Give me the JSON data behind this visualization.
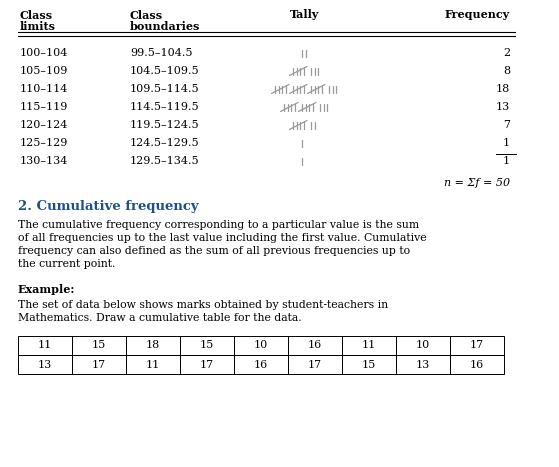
{
  "title_table": [
    "Class\nlimits",
    "Class\nboundaries",
    "Tally",
    "Frequency"
  ],
  "rows": [
    [
      "100–104",
      "99.5–104.5",
      2,
      "2"
    ],
    [
      "105–109",
      "104.5–109.5",
      8,
      "8"
    ],
    [
      "110–114",
      "109.5–114.5",
      18,
      "18"
    ],
    [
      "115–119",
      "114.5–119.5",
      13,
      "13"
    ],
    [
      "120–124",
      "119.5–124.5",
      7,
      "7"
    ],
    [
      "125–129",
      "124.5–129.5",
      1,
      "1"
    ],
    [
      "130–134",
      "129.5–134.5",
      1,
      "1"
    ]
  ],
  "sum_row": "n = Σf = 50",
  "section_heading": "2. Cumulative frequency",
  "para_lines": [
    "The cumulative frequency corresponding to a particular value is the sum",
    "of all frequencies up to the last value including the first value. Cumulative",
    "frequency can also defined as the sum of all previous frequencies up to",
    "the current point."
  ],
  "example_heading": "Example:",
  "example_lines": [
    "The set of data below shows marks obtained by student-teachers in",
    "Mathematics. Draw a cumulative table for the data."
  ],
  "data_row1": [
    "11",
    "15",
    "18",
    "15",
    "10",
    "16",
    "11",
    "10",
    "17"
  ],
  "data_row2": [
    "13",
    "17",
    "11",
    "17",
    "16",
    "17",
    "15",
    "13",
    "16"
  ],
  "bg_color": "#ffffff",
  "text_color": "#000000",
  "heading_color": "#1f4e8c",
  "table_line_color": "#000000",
  "tally_color": "#999999"
}
